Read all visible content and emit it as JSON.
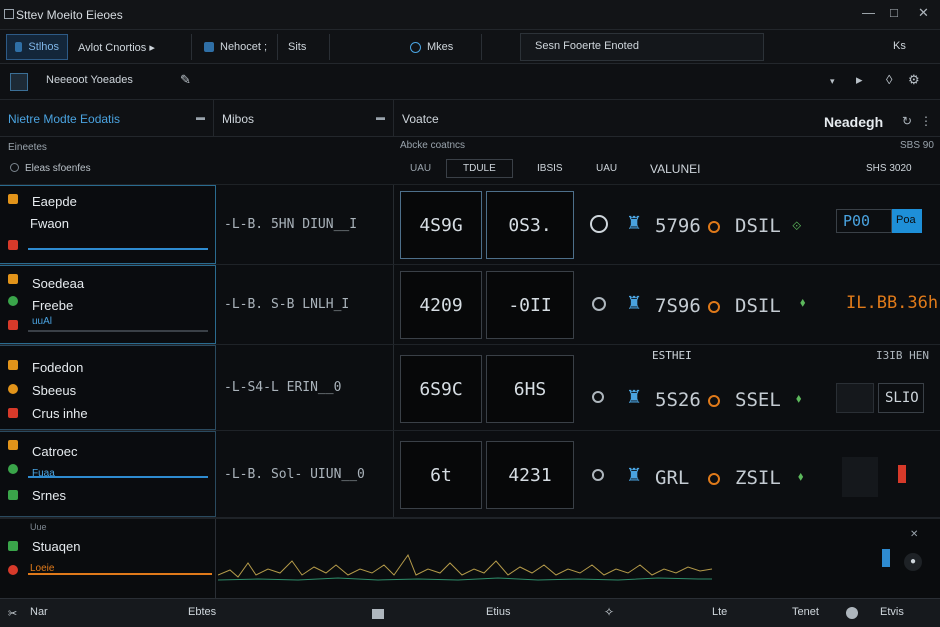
{
  "window": {
    "title": "Sttev  Moeito Eieoes",
    "min_glyph": "—",
    "max_glyph": "□",
    "close_glyph": "✕"
  },
  "tabs": [
    {
      "label": "Stlhos",
      "active": true
    },
    {
      "label": "Avlot Cnortios ▸",
      "active": false
    },
    {
      "label": "Nehocet ;",
      "active": false
    },
    {
      "label": "Sits",
      "active": false
    },
    {
      "label": "Mkes",
      "active": false
    }
  ],
  "search": {
    "value": "Sesn Fooerte Enoted"
  },
  "tabbar_right": {
    "label": "Ks"
  },
  "toolbar": {
    "label": "Neeeoot Yoeades",
    "icons": [
      "gear-icon",
      "pin-icon",
      "chevron-down-icon",
      "play-icon",
      "drop-icon",
      "settings-icon"
    ]
  },
  "panel_header": {
    "col1": "Nietre Modte Eodatis",
    "col2": "Mibos",
    "col3": "Voatce",
    "right_label": "Neadegh"
  },
  "sub_header": {
    "left_top": "Eineetes",
    "left_bottom": "Eleas sfoenfes",
    "mid_top": "Abcke coatncs",
    "mid_a": "UAU",
    "mid_b": "TDULE",
    "mid_c": "IBSIS",
    "mid_d": "VALUNEI",
    "right_top": "SBS 90",
    "right_bottom": "SHS 3020"
  },
  "rows": [
    {
      "names": [
        "Eaepde",
        "Fwaon"
      ],
      "metric": "-L-B. 5HN DIUN__I",
      "box_a": "4S9G",
      "box_b": "0S3.",
      "v1": "5796",
      "v2": "DSIL",
      "badge": "P00",
      "badge_right": "Poa",
      "colors": [
        "#e2941a",
        "#d73a2a"
      ]
    },
    {
      "names": [
        "Soedeaa",
        "Freebe",
        "uuAl"
      ],
      "metric": "-L-B. S-B LNLH_I",
      "box_a": "4209",
      "box_b": "-0II",
      "v1": "7S96",
      "v2": "DSIL",
      "badge": "IL.BB.36h",
      "badge_right": "",
      "colors": [
        "#e2941a",
        "#d73a2a"
      ]
    },
    {
      "names": [
        "Fodedon",
        "Sbeeus",
        "Crus inhe"
      ],
      "metric": "-L-S4-L ERIN__0",
      "box_a": "6S9C",
      "box_b": "6HS",
      "v1": "5S26",
      "v2": "SSEL",
      "badge": "SLIO",
      "badge_right": "",
      "header_mid": "ESTHEI",
      "header_right": "I3IB HEN",
      "colors": [
        "#e2941a",
        "#d73a2a"
      ]
    },
    {
      "names": [
        "Catroec",
        "Fuaa",
        "Srnes"
      ],
      "metric": "-L-B. Sol- UIUN__0",
      "box_a": "6t",
      "box_b": "4231",
      "v1": "GRL",
      "v2": "ZSIL",
      "badge": "",
      "badge_right": "",
      "colors": [
        "#e2941a",
        "#d73a2a"
      ]
    }
  ],
  "chart_strip": {
    "label_top": "Uue",
    "label": "Stuaqen",
    "sub_label": "Loeie"
  },
  "status_bar": {
    "left": "Nar",
    "a": "Ebtes",
    "b": "Etius",
    "c": "Lte",
    "d": "Tenet",
    "e": "Etvis"
  }
}
